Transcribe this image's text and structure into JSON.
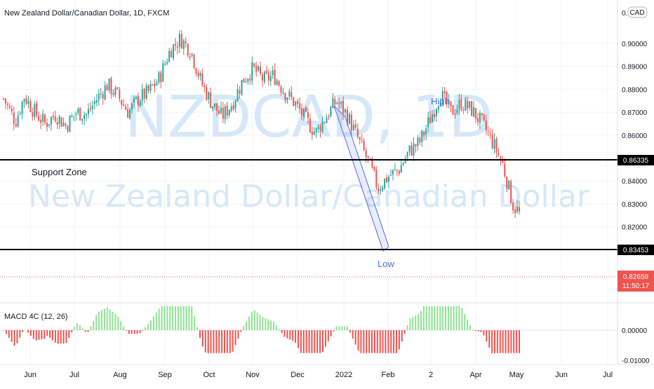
{
  "header": {
    "title": "New Zealand Dollar/Canadian Dollar, 1D, FXCM",
    "currency_badge": "CAD",
    "currency_prefix": "0."
  },
  "watermark": {
    "symbol": "NZDCAD, 1D",
    "name": "New Zealand Dollar/Canadian Dollar"
  },
  "annotations": {
    "support": "Support Zone",
    "high": "High",
    "low": "Low"
  },
  "levels": {
    "upper_label": "0.86335",
    "lower_label": "0.83453"
  },
  "price_tag": {
    "value": "0.82659",
    "countdown": "11:50:17"
  },
  "price_axis": [
    "0.90000",
    "0.89000",
    "0.88000",
    "0.87000",
    "0.86000",
    "0.85000",
    "0.84000",
    "0.83000",
    "0.82000"
  ],
  "macd": {
    "label": "MACD 4C (12, 26)",
    "axis": [
      "0.00000",
      "-0.01000"
    ]
  },
  "time_axis": [
    "Jun",
    "Jul",
    "Aug",
    "Sep",
    "Oct",
    "Nov",
    "Dec",
    "2022",
    "Feb",
    "2",
    "Apr",
    "May",
    "Jun",
    "Jul"
  ],
  "colors": {
    "up": "#26a69a",
    "down": "#ef5350",
    "macd_pos": "#8fe38f",
    "macd_neg": "#ef5350",
    "channel": "#4a6fe3",
    "level": "#000000",
    "tag": "#ef5350"
  },
  "chart_data": {
    "type": "candlestick",
    "title": "New Zealand Dollar/Canadian Dollar, 1D, FXCM",
    "series_name": "NZDCAD",
    "ylim": [
      0.8185,
      0.9055
    ],
    "x_ticks": [
      "Jun",
      "Jul",
      "Aug",
      "Sep",
      "Oct",
      "Nov",
      "Dec",
      "2022",
      "Feb",
      "2",
      "Apr",
      "May",
      "Jun",
      "Jul"
    ],
    "horizontal_levels": [
      0.86335,
      0.83453
    ],
    "last_price": 0.82659,
    "close_path": [
      {
        "x": "2021-05-20",
        "close": 0.876
      },
      {
        "x": "2021-05-28",
        "close": 0.866
      },
      {
        "x": "2021-06-03",
        "close": 0.877
      },
      {
        "x": "2021-06-10",
        "close": 0.87
      },
      {
        "x": "2021-06-17",
        "close": 0.865
      },
      {
        "x": "2021-06-24",
        "close": 0.869
      },
      {
        "x": "2021-07-01",
        "close": 0.864
      },
      {
        "x": "2021-07-08",
        "close": 0.87
      },
      {
        "x": "2021-07-15",
        "close": 0.869
      },
      {
        "x": "2021-07-22",
        "close": 0.876
      },
      {
        "x": "2021-07-29",
        "close": 0.882
      },
      {
        "x": "2021-08-05",
        "close": 0.877
      },
      {
        "x": "2021-08-12",
        "close": 0.87
      },
      {
        "x": "2021-08-19",
        "close": 0.876
      },
      {
        "x": "2021-08-26",
        "close": 0.879
      },
      {
        "x": "2021-09-02",
        "close": 0.885
      },
      {
        "x": "2021-09-09",
        "close": 0.897
      },
      {
        "x": "2021-09-16",
        "close": 0.902
      },
      {
        "x": "2021-09-23",
        "close": 0.897
      },
      {
        "x": "2021-09-30",
        "close": 0.883
      },
      {
        "x": "2021-10-07",
        "close": 0.874
      },
      {
        "x": "2021-10-14",
        "close": 0.868
      },
      {
        "x": "2021-10-21",
        "close": 0.874
      },
      {
        "x": "2021-10-28",
        "close": 0.884
      },
      {
        "x": "2021-11-04",
        "close": 0.889
      },
      {
        "x": "2021-11-11",
        "close": 0.884
      },
      {
        "x": "2021-11-18",
        "close": 0.886
      },
      {
        "x": "2021-11-25",
        "close": 0.879
      },
      {
        "x": "2021-12-02",
        "close": 0.874
      },
      {
        "x": "2021-12-09",
        "close": 0.867
      },
      {
        "x": "2021-12-16",
        "close": 0.861
      },
      {
        "x": "2021-12-23",
        "close": 0.868
      },
      {
        "x": "2021-12-30",
        "close": 0.875
      },
      {
        "x": "2022-01-06",
        "close": 0.869
      },
      {
        "x": "2022-01-13",
        "close": 0.859
      },
      {
        "x": "2022-01-20",
        "close": 0.849
      },
      {
        "x": "2022-01-27",
        "close": 0.837
      },
      {
        "x": "2022-02-03",
        "close": 0.842
      },
      {
        "x": "2022-02-10",
        "close": 0.845
      },
      {
        "x": "2022-02-17",
        "close": 0.853
      },
      {
        "x": "2022-02-24",
        "close": 0.857
      },
      {
        "x": "2022-03-03",
        "close": 0.867
      },
      {
        "x": "2022-03-10",
        "close": 0.878
      },
      {
        "x": "2022-03-17",
        "close": 0.87
      },
      {
        "x": "2022-03-24",
        "close": 0.874
      },
      {
        "x": "2022-03-31",
        "close": 0.871
      },
      {
        "x": "2022-04-07",
        "close": 0.865
      },
      {
        "x": "2022-04-14",
        "close": 0.857
      },
      {
        "x": "2022-04-21",
        "close": 0.847
      },
      {
        "x": "2022-04-28",
        "close": 0.829
      },
      {
        "x": "2022-05-02",
        "close": 0.8266
      }
    ]
  }
}
